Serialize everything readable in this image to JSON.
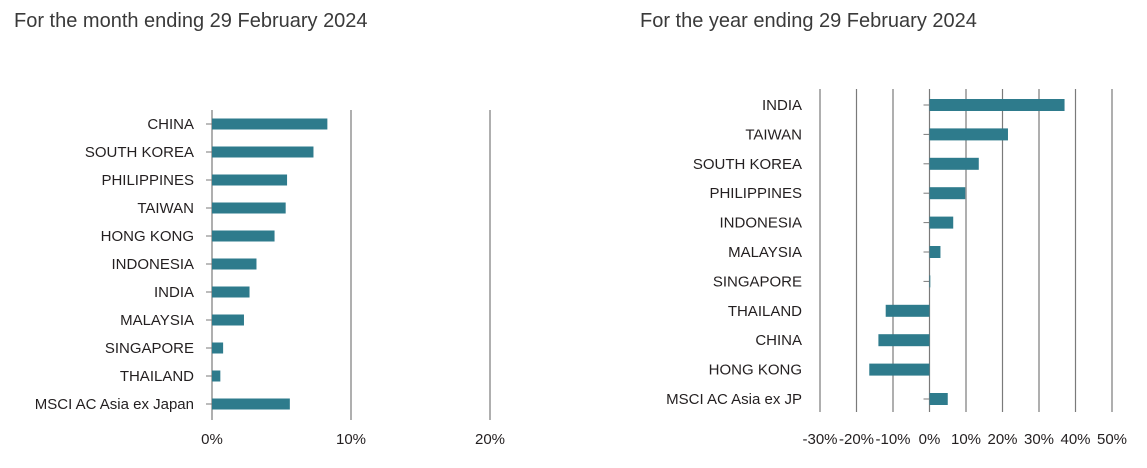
{
  "chart_data": [
    {
      "type": "bar",
      "orientation": "horizontal",
      "title": "For the month ending 29 February 2024",
      "categories": [
        "CHINA",
        "SOUTH KOREA",
        "PHILIPPINES",
        "TAIWAN",
        "HONG KONG",
        "INDONESIA",
        "INDIA",
        "MALAYSIA",
        "SINGAPORE",
        "THAILAND",
        "MSCI AC Asia ex Japan"
      ],
      "values": [
        8.3,
        7.3,
        5.4,
        5.3,
        4.5,
        3.2,
        2.7,
        2.3,
        0.8,
        0.6,
        5.6
      ],
      "xlim": [
        0,
        20
      ],
      "ticks": [
        0,
        10,
        20
      ],
      "tick_labels": [
        "0%",
        "10%",
        "20%"
      ],
      "grid": true,
      "bar_color": "#2e7b8c"
    },
    {
      "type": "bar",
      "orientation": "horizontal",
      "title": "For the year ending 29 February 2024",
      "categories": [
        "INDIA",
        "TAIWAN",
        "SOUTH KOREA",
        "PHILIPPINES",
        "INDONESIA",
        "MALAYSIA",
        "SINGAPORE",
        "THAILAND",
        "CHINA",
        "HONG KONG",
        "MSCI AC Asia ex JP"
      ],
      "values": [
        37.0,
        21.5,
        13.5,
        9.8,
        6.5,
        3.0,
        0.0,
        -12.0,
        -14.0,
        -16.5,
        5.0
      ],
      "xlim": [
        -30,
        50
      ],
      "ticks": [
        -30,
        -20,
        -10,
        0,
        10,
        20,
        30,
        40,
        50
      ],
      "tick_labels": [
        "-30%",
        "-20%",
        "-10%",
        "0%",
        "10%",
        "20%",
        "30%",
        "40%",
        "50%"
      ],
      "grid": true,
      "bar_color": "#2e7b8c"
    }
  ]
}
